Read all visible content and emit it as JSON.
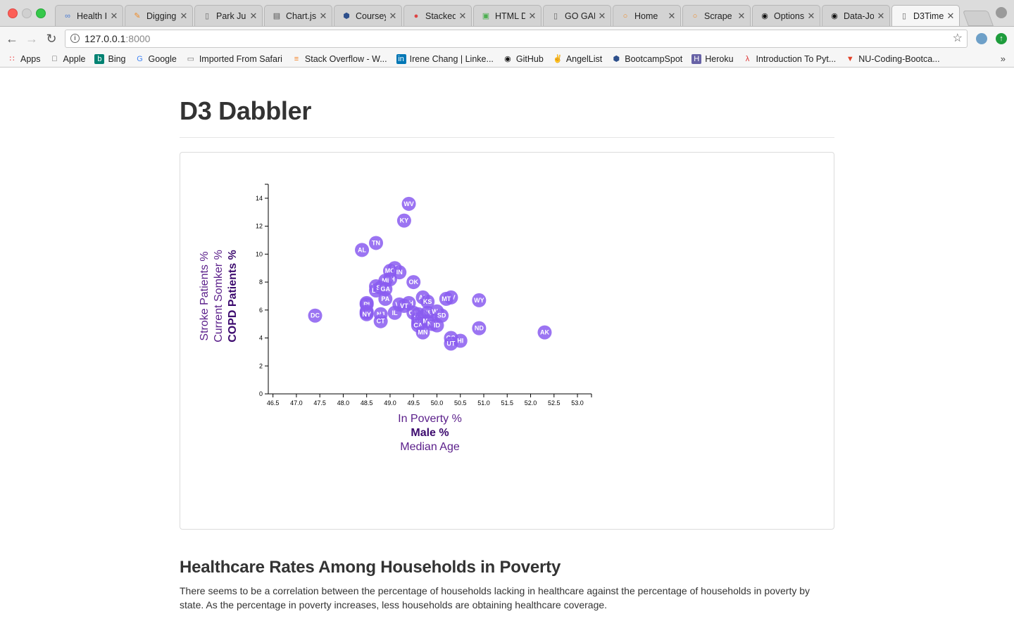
{
  "browser": {
    "tabs": [
      {
        "label": "Health I",
        "icon": "infinity-icon",
        "color": "#4a7bd1"
      },
      {
        "label": "Digging",
        "icon": "pen-icon",
        "color": "#f08a24"
      },
      {
        "label": "Park Ju",
        "icon": "document-icon",
        "color": "#666666"
      },
      {
        "label": "Chart.js",
        "icon": "book-icon",
        "color": "#555555"
      },
      {
        "label": "Coursey",
        "icon": "hexagon-icon",
        "color": "#2d4f8b"
      },
      {
        "label": "Stacked",
        "icon": "stacked-icon",
        "color": "#d44"
      },
      {
        "label": "HTML D",
        "icon": "codepen-icon",
        "color": "#4caf50"
      },
      {
        "label": "GO GAN",
        "icon": "document-icon",
        "color": "#666666"
      },
      {
        "label": "Home",
        "icon": "ring-icon",
        "color": "#f08a24"
      },
      {
        "label": "Scrape",
        "icon": "ring-icon",
        "color": "#f08a24"
      },
      {
        "label": "Options",
        "icon": "github-icon",
        "color": "#111111"
      },
      {
        "label": "Data-Jo",
        "icon": "github-icon",
        "color": "#111111"
      },
      {
        "label": "D3Time",
        "icon": "document-icon",
        "color": "#666666",
        "active": true
      }
    ],
    "url_host": "127.0.0.1",
    "url_port": ":8000",
    "bookmarks": [
      {
        "label": "Apps",
        "icon": "apps-grid-icon"
      },
      {
        "label": "Apple",
        "icon": "apple-icon"
      },
      {
        "label": "Bing",
        "icon": "bing-icon"
      },
      {
        "label": "Google",
        "icon": "google-icon"
      },
      {
        "label": "Imported From Safari",
        "icon": "folder-icon"
      },
      {
        "label": "Stack Overflow - W...",
        "icon": "stackoverflow-icon"
      },
      {
        "label": "Irene Chang | Linke...",
        "icon": "linkedin-icon"
      },
      {
        "label": "GitHub",
        "icon": "github-icon"
      },
      {
        "label": "AngelList",
        "icon": "angellist-icon"
      },
      {
        "label": "BootcampSpot",
        "icon": "hexagon-icon"
      },
      {
        "label": "Heroku",
        "icon": "heroku-icon"
      },
      {
        "label": "Introduction To Pyt...",
        "icon": "pytutor-icon"
      },
      {
        "label": "NU-Coding-Bootca...",
        "icon": "gitlab-icon"
      }
    ],
    "more": "»"
  },
  "page": {
    "title": "D3 Dabbler",
    "section_heading": "Healthcare Rates Among Households in Poverty",
    "paragraph": "There seems to be a correlation between the percentage of households lacking in healthcare against the percentage of households in poverty by state. As the percentage in poverty increases, less households are obtaining healthcare coverage."
  },
  "chart_data": {
    "type": "scatter",
    "x_labels": [
      {
        "text": "In Poverty %",
        "active": false
      },
      {
        "text": "Male %",
        "active": true
      },
      {
        "text": "Median Age",
        "active": false
      }
    ],
    "y_labels": [
      {
        "text": "COPD Patients %",
        "active": true
      },
      {
        "text": "Current Somker %",
        "active": false
      },
      {
        "text": "Stroke Patients %",
        "active": false
      }
    ],
    "xlim": [
      46.4,
      53.3
    ],
    "ylim": [
      0,
      15
    ],
    "x_ticks": [
      "46.5",
      "47.0",
      "47.5",
      "48.0",
      "48.5",
      "49.0",
      "49.5",
      "50.0",
      "50.5",
      "51.0",
      "51.5",
      "52.0",
      "52.5",
      "53.0"
    ],
    "y_ticks": [
      "0",
      "2",
      "4",
      "6",
      "8",
      "10",
      "12",
      "14"
    ],
    "marker_color": "#8a5cf0",
    "points": [
      {
        "abbr": "WV",
        "x": 49.4,
        "y": 13.6
      },
      {
        "abbr": "KY",
        "x": 49.3,
        "y": 12.4
      },
      {
        "abbr": "TN",
        "x": 48.7,
        "y": 10.8
      },
      {
        "abbr": "AL",
        "x": 48.4,
        "y": 10.3
      },
      {
        "abbr": "AR",
        "x": 49.1,
        "y": 9.0
      },
      {
        "abbr": "MO",
        "x": 49.0,
        "y": 8.8
      },
      {
        "abbr": "IN",
        "x": 49.2,
        "y": 8.7
      },
      {
        "abbr": "OH",
        "x": 49.0,
        "y": 8.2
      },
      {
        "abbr": "MI",
        "x": 48.9,
        "y": 8.1
      },
      {
        "abbr": "OK",
        "x": 49.5,
        "y": 8.0
      },
      {
        "abbr": "MS",
        "x": 48.7,
        "y": 7.7
      },
      {
        "abbr": "LA",
        "x": 48.7,
        "y": 7.4
      },
      {
        "abbr": "SC",
        "x": 48.8,
        "y": 7.6
      },
      {
        "abbr": "GA",
        "x": 48.9,
        "y": 7.5
      },
      {
        "abbr": "PA",
        "x": 48.9,
        "y": 6.8
      },
      {
        "abbr": "AZ",
        "x": 49.7,
        "y": 6.9
      },
      {
        "abbr": "NV",
        "x": 50.3,
        "y": 6.9
      },
      {
        "abbr": "MT",
        "x": 50.2,
        "y": 6.8
      },
      {
        "abbr": "KS",
        "x": 49.8,
        "y": 6.6
      },
      {
        "abbr": "WY",
        "x": 50.9,
        "y": 6.7
      },
      {
        "abbr": "NH",
        "x": 49.4,
        "y": 6.5
      },
      {
        "abbr": "VA",
        "x": 49.2,
        "y": 6.4
      },
      {
        "abbr": "VT",
        "x": 49.3,
        "y": 6.3
      },
      {
        "abbr": "DE",
        "x": 48.5,
        "y": 6.5
      },
      {
        "abbr": "RI",
        "x": 48.5,
        "y": 6.4
      },
      {
        "abbr": "MA",
        "x": 48.5,
        "y": 5.9
      },
      {
        "abbr": "MD",
        "x": 48.5,
        "y": 5.8
      },
      {
        "abbr": "NY",
        "x": 48.5,
        "y": 5.7
      },
      {
        "abbr": "IL",
        "x": 49.1,
        "y": 5.8
      },
      {
        "abbr": "NJ",
        "x": 48.8,
        "y": 5.7
      },
      {
        "abbr": "CT",
        "x": 48.8,
        "y": 5.2
      },
      {
        "abbr": "DC",
        "x": 47.4,
        "y": 5.6
      },
      {
        "abbr": "OR",
        "x": 49.5,
        "y": 5.8
      },
      {
        "abbr": "FL",
        "x": 49.6,
        "y": 5.7
      },
      {
        "abbr": "NE",
        "x": 49.8,
        "y": 5.8
      },
      {
        "abbr": "WA",
        "x": 50.0,
        "y": 5.9
      },
      {
        "abbr": "SD",
        "x": 50.1,
        "y": 5.6
      },
      {
        "abbr": "IA",
        "x": 49.7,
        "y": 5.5
      },
      {
        "abbr": "NC",
        "x": 49.6,
        "y": 5.4
      },
      {
        "abbr": "TX",
        "x": 49.7,
        "y": 5.2
      },
      {
        "abbr": "WI",
        "x": 49.6,
        "y": 5.1
      },
      {
        "abbr": "CA",
        "x": 49.6,
        "y": 4.9
      },
      {
        "abbr": "ME",
        "x": 49.8,
        "y": 5.2
      },
      {
        "abbr": "NM",
        "x": 49.9,
        "y": 5.0
      },
      {
        "abbr": "ID",
        "x": 50.0,
        "y": 4.9
      },
      {
        "abbr": "MN",
        "x": 49.7,
        "y": 4.4
      },
      {
        "abbr": "ND",
        "x": 50.9,
        "y": 4.7
      },
      {
        "abbr": "AK",
        "x": 52.3,
        "y": 4.4
      },
      {
        "abbr": "CO",
        "x": 50.3,
        "y": 4.0
      },
      {
        "abbr": "HI",
        "x": 50.5,
        "y": 3.8
      },
      {
        "abbr": "UT",
        "x": 50.3,
        "y": 3.6
      }
    ]
  }
}
